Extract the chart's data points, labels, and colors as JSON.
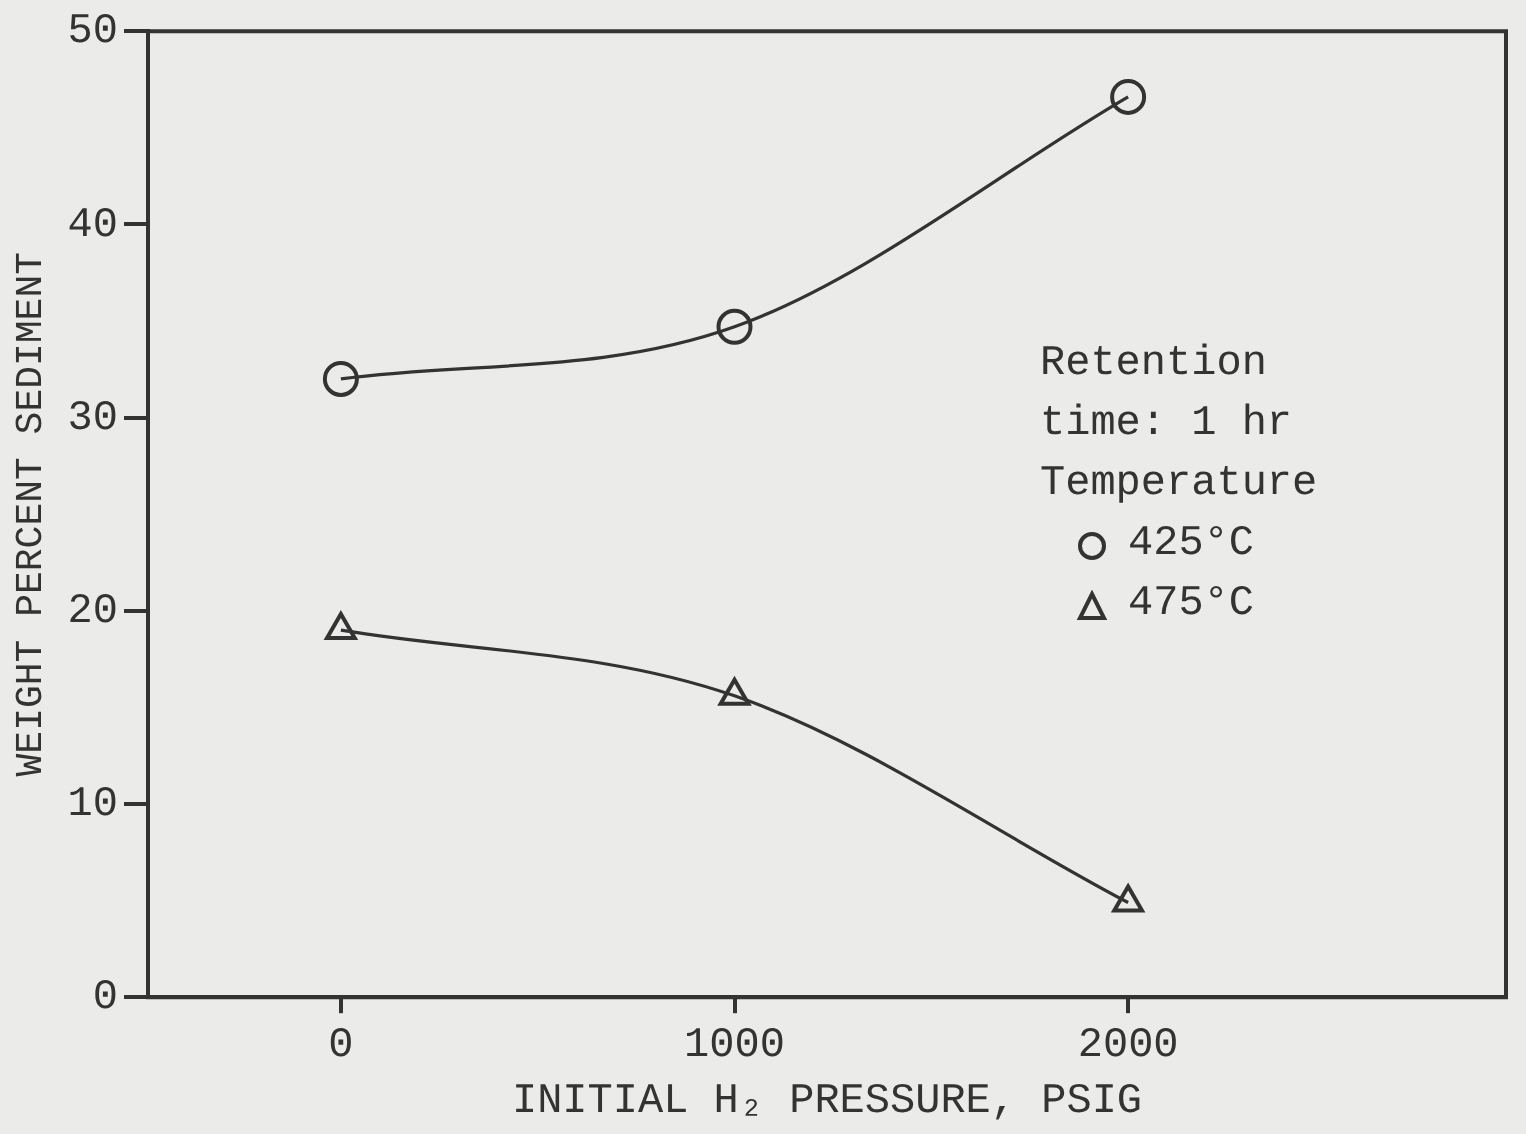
{
  "chart_data": {
    "type": "line",
    "xlabel": "INITIAL H₂ PRESSURE, PSIG",
    "ylabel": "WEIGHT PERCENT SEDIMENT",
    "legend_title": "Temperature",
    "annotations": [
      "Retention time: 1 hr"
    ],
    "x": [
      0,
      1000,
      2000
    ],
    "series": [
      {
        "name": "425°C",
        "color": "#333333",
        "marker": "circle",
        "values": [
          32.0,
          34.7,
          46.6
        ]
      },
      {
        "name": "475°C",
        "color": "#333333",
        "marker": "triangle",
        "values": [
          19.0,
          15.6,
          4.9
        ]
      }
    ],
    "xlim": [
      -490,
      2960
    ],
    "xticks": [
      0,
      1000,
      2000
    ],
    "ylim": [
      0,
      50
    ],
    "yticks": [
      0,
      10,
      20,
      30,
      40,
      50
    ],
    "grid": false,
    "legend": "right"
  }
}
